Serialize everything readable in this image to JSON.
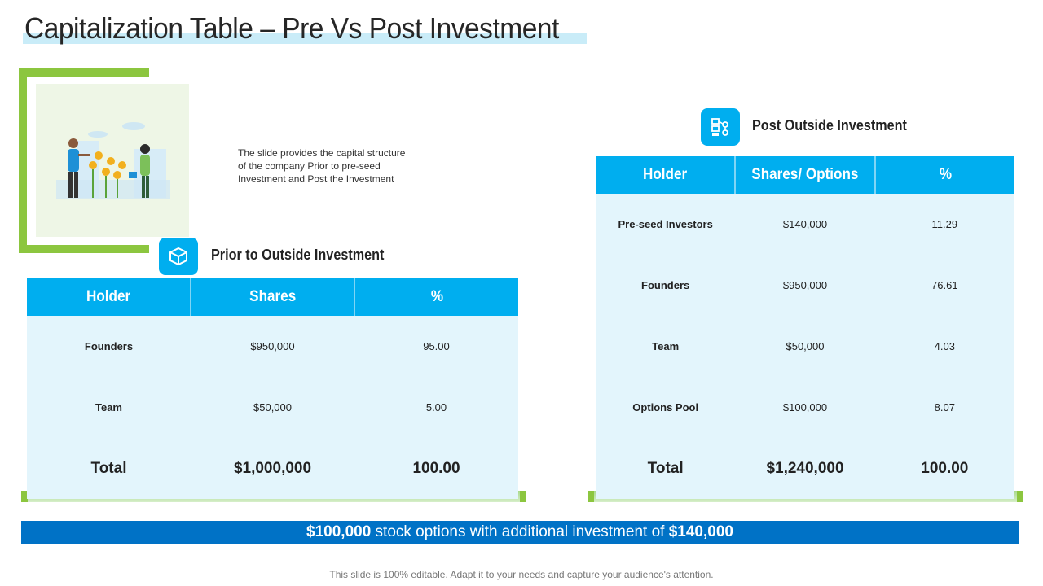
{
  "title": "Capitalization Table – Pre Vs Post Investment",
  "description": "The slide provides  the capital structure\nof the company Prior to pre-seed\nInvestment  and Post the Investment",
  "prior": {
    "heading": "Prior to Outside Investment",
    "icon": "cube-icon",
    "columns": [
      "Holder",
      "Shares",
      "%"
    ],
    "rows": [
      [
        "Founders",
        "$950,000",
        "95.00"
      ],
      [
        "Team",
        "$50,000",
        "5.00"
      ]
    ],
    "total": [
      "Total",
      "$1,000,000",
      "100.00"
    ]
  },
  "post": {
    "heading": "Post Outside Investment",
    "icon": "flowchart-icon",
    "columns": [
      "Holder",
      "Shares/ Options",
      "%"
    ],
    "rows": [
      [
        "Pre-seed Investors",
        "$140,000",
        "11.29"
      ],
      [
        "Founders",
        "$950,000",
        "76.61"
      ],
      [
        "Team",
        "$50,000",
        "4.03"
      ],
      [
        "Options Pool",
        "$100,000",
        "8.07"
      ]
    ],
    "total": [
      "Total",
      "$1,240,000",
      "100.00"
    ]
  },
  "banner": {
    "amount1": "$100,000",
    "text": " stock options with additional investment of ",
    "amount2": "$140,000"
  },
  "footer": "This slide is 100% editable. Adapt it to your needs and capture your audience's attention.",
  "colors": {
    "accent_blue": "#00aeef",
    "banner_blue": "#0072c6",
    "table_bg": "#e3f5fc",
    "green": "#8cc63f"
  }
}
